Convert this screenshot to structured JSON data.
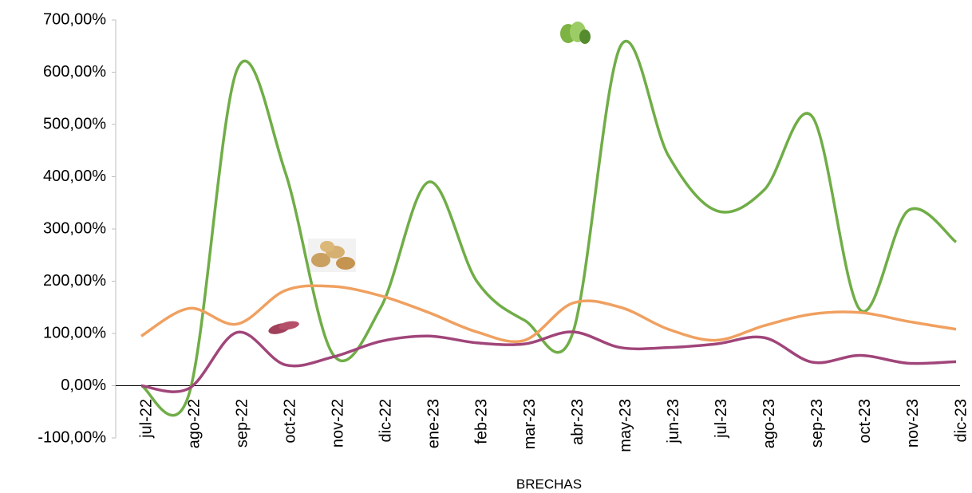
{
  "chart_data": {
    "type": "line",
    "x_label": "BRECHAS",
    "categories": [
      "jul-22",
      "ago-22",
      "sep-22",
      "oct-22",
      "nov-22",
      "dic-22",
      "ene-23",
      "feb-23",
      "mar-23",
      "abr-23",
      "may-23",
      "jun-23",
      "jul-23",
      "ago-23",
      "sep-23",
      "oct-23",
      "nov-23",
      "dic-23"
    ],
    "series": [
      {
        "color": "#70ad47",
        "values": [
          0,
          -15,
          605,
          410,
          60,
          150,
          390,
          200,
          125,
          100,
          650,
          440,
          335,
          375,
          515,
          145,
          335,
          275
        ]
      },
      {
        "color": "#f0a060",
        "values": [
          95,
          148,
          118,
          182,
          190,
          172,
          140,
          103,
          87,
          158,
          150,
          108,
          87,
          115,
          137,
          140,
          123,
          108
        ]
      },
      {
        "color": "#a0457a",
        "values": [
          0,
          -5,
          102,
          40,
          55,
          85,
          95,
          82,
          80,
          103,
          73,
          73,
          80,
          92,
          45,
          58,
          43,
          46
        ]
      }
    ],
    "ylim": [
      -100,
      700
    ],
    "yticks": [
      {
        "value": -100,
        "label": "-100,00%"
      },
      {
        "value": 0,
        "label": "0,00%"
      },
      {
        "value": 100,
        "label": "100,00%"
      },
      {
        "value": 200,
        "label": "200,00%"
      },
      {
        "value": 300,
        "label": "300,00%"
      },
      {
        "value": 400,
        "label": "400,00%"
      },
      {
        "value": 500,
        "label": "500,00%"
      },
      {
        "value": 600,
        "label": "600,00%"
      },
      {
        "value": 700,
        "label": "700,00%"
      }
    ]
  }
}
